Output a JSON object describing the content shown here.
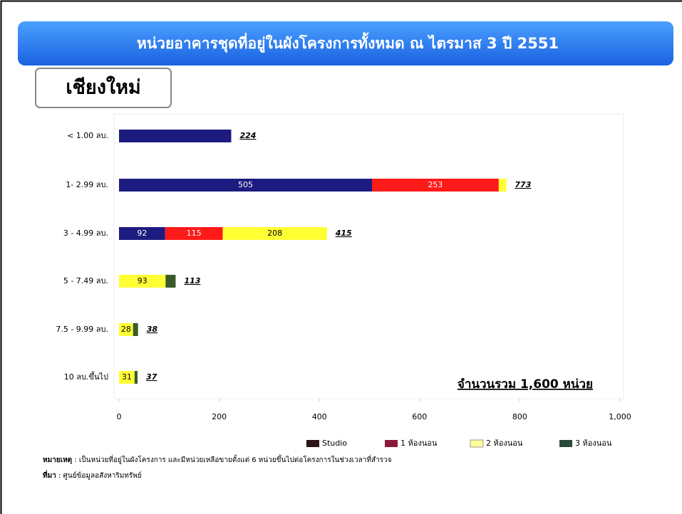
{
  "chart_data": {
    "type": "stacked-barh",
    "title": "หน่วยอาคารชุดที่อยู่ในผังโครงการทั้งหมด ณ ไตรมาส 3 ปี 2551",
    "subtitle": "เชียงใหม่",
    "annotation": "จำนวนรวม 1,600 หน่วย",
    "categories": [
      "< 1.00 ลบ.",
      "1- 2.99 ลบ.",
      "3 - 4.99 ลบ.",
      "5 - 7.49 ลบ.",
      "7.5 - 9.99 ลบ.",
      "10 ลบ.ขึ้นไป"
    ],
    "series": [
      {
        "name": "Studio",
        "color": "#1c1c80",
        "legend_color": "#2a1414",
        "values": [
          224,
          505,
          92,
          null,
          null,
          null
        ],
        "value_labels": [
          null,
          "505",
          "92",
          null,
          null,
          null
        ]
      },
      {
        "name": "1 ห้องนอน",
        "color": "#ff1a1a",
        "legend_color": "#8b1a3a",
        "values": [
          null,
          253,
          115,
          null,
          null,
          null
        ],
        "value_labels": [
          null,
          "253",
          "115",
          null,
          null,
          null
        ]
      },
      {
        "name": "2 ห้องนอน",
        "color": "#ffff33",
        "legend_color": "#ffff99",
        "values": [
          null,
          15,
          208,
          93,
          28,
          31
        ],
        "value_labels": [
          null,
          null,
          "208",
          "93",
          "28",
          "31"
        ]
      },
      {
        "name": "3 ห้องนอน",
        "color": "#3a5a2a",
        "legend_color": "#2a4a3a",
        "values": [
          null,
          null,
          null,
          20,
          10,
          6
        ],
        "value_labels": [
          null,
          null,
          null,
          null,
          null,
          null
        ]
      }
    ],
    "totals": [
      224,
      773,
      415,
      113,
      38,
      37
    ],
    "xlim": [
      0,
      1000
    ],
    "xticks": [
      0,
      200,
      400,
      600,
      800,
      {
        "value": 1000,
        "label": "1,000"
      }
    ],
    "note_label": "หมายเหตุ",
    "note": " : เป็นหน่วยที่อยู่ในผังโครงการ และมีหน่วยเหลือขายตั้งแต่ 6 หน่วยขึ้นไปต่อโครงการในช่วงเวลาที่สำรวจ",
    "source_label": "ที่มา",
    "source": " : ศูนย์ข้อมูลอสังหาริมทรัพย์"
  }
}
